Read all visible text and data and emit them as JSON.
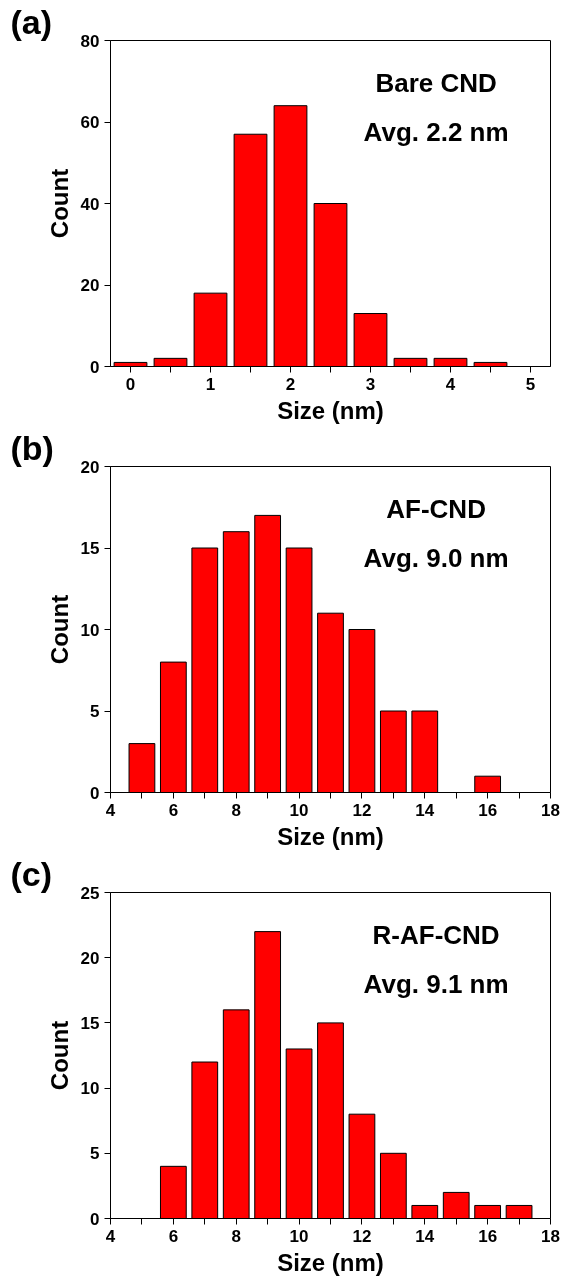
{
  "chart_data": [
    {
      "type": "histogram",
      "title": "(a)",
      "xlabel": "Size (nm)",
      "ylabel": "Count",
      "annotations": [
        "Bare CND",
        "Avg. 2.2 nm"
      ],
      "color": "#ff0000",
      "bins": [
        -0.25,
        0.25,
        0.75,
        1.25,
        1.75,
        2.25,
        2.75,
        3.25,
        3.75,
        4.25,
        4.75
      ],
      "values": [
        1,
        2,
        18,
        57,
        64,
        40,
        13,
        2,
        2,
        1
      ],
      "xlim": [
        -0.25,
        5.25
      ],
      "ylim": [
        0,
        80
      ],
      "xticks": [
        0,
        {
          "value": 0.5,
          "label": null
        },
        1,
        {
          "value": 1.5,
          "label": null
        },
        2,
        {
          "value": 2.5,
          "label": null
        },
        3,
        {
          "value": 3.5,
          "label": null
        },
        4,
        {
          "value": 4.5,
          "label": null
        },
        5
      ],
      "yticks": [
        0,
        20,
        40,
        60,
        80
      ],
      "grid": false
    },
    {
      "type": "histogram",
      "title": "(b)",
      "xlabel": "Size (nm)",
      "ylabel": "Count",
      "annotations": [
        "AF-CND",
        "Avg. 9.0 nm"
      ],
      "color": "#ff0000",
      "bins": [
        4.5,
        5.5,
        6.5,
        7.5,
        8.5,
        9.5,
        10.5,
        11.5,
        12.5,
        13.5,
        14.5,
        15.5,
        16.5
      ],
      "values": [
        3,
        8,
        15,
        16,
        17,
        15,
        11,
        10,
        5,
        5,
        0,
        1
      ],
      "xlim": [
        4,
        18
      ],
      "ylim": [
        0,
        20
      ],
      "xticks": [
        4,
        {
          "value": 5,
          "label": null
        },
        6,
        {
          "value": 7,
          "label": null
        },
        8,
        {
          "value": 9,
          "label": null
        },
        10,
        {
          "value": 11,
          "label": null
        },
        12,
        {
          "value": 13,
          "label": null
        },
        14,
        {
          "value": 15,
          "label": null
        },
        16,
        {
          "value": 17,
          "label": null
        },
        18
      ],
      "yticks": [
        0,
        5,
        10,
        15,
        20
      ],
      "grid": false
    },
    {
      "type": "histogram",
      "title": "(c)",
      "xlabel": "Size (nm)",
      "ylabel": "Count",
      "annotations": [
        "R-AF-CND",
        "Avg. 9.1 nm"
      ],
      "color": "#ff0000",
      "bins": [
        5.5,
        6.5,
        7.5,
        8.5,
        9.5,
        10.5,
        11.5,
        12.5,
        13.5,
        14.5,
        15.5,
        16.5,
        17.5
      ],
      "values": [
        4,
        12,
        16,
        22,
        13,
        15,
        8,
        5,
        1,
        2,
        1,
        1
      ],
      "xlim": [
        4,
        18
      ],
      "ylim": [
        0,
        25
      ],
      "xticks": [
        4,
        {
          "value": 5,
          "label": null
        },
        6,
        {
          "value": 7,
          "label": null
        },
        8,
        {
          "value": 9,
          "label": null
        },
        10,
        {
          "value": 11,
          "label": null
        },
        12,
        {
          "value": 13,
          "label": null
        },
        14,
        {
          "value": 15,
          "label": null
        },
        16,
        {
          "value": 17,
          "label": null
        },
        18
      ],
      "yticks": [
        0,
        5,
        10,
        15,
        20,
        25
      ],
      "grid": false
    }
  ]
}
